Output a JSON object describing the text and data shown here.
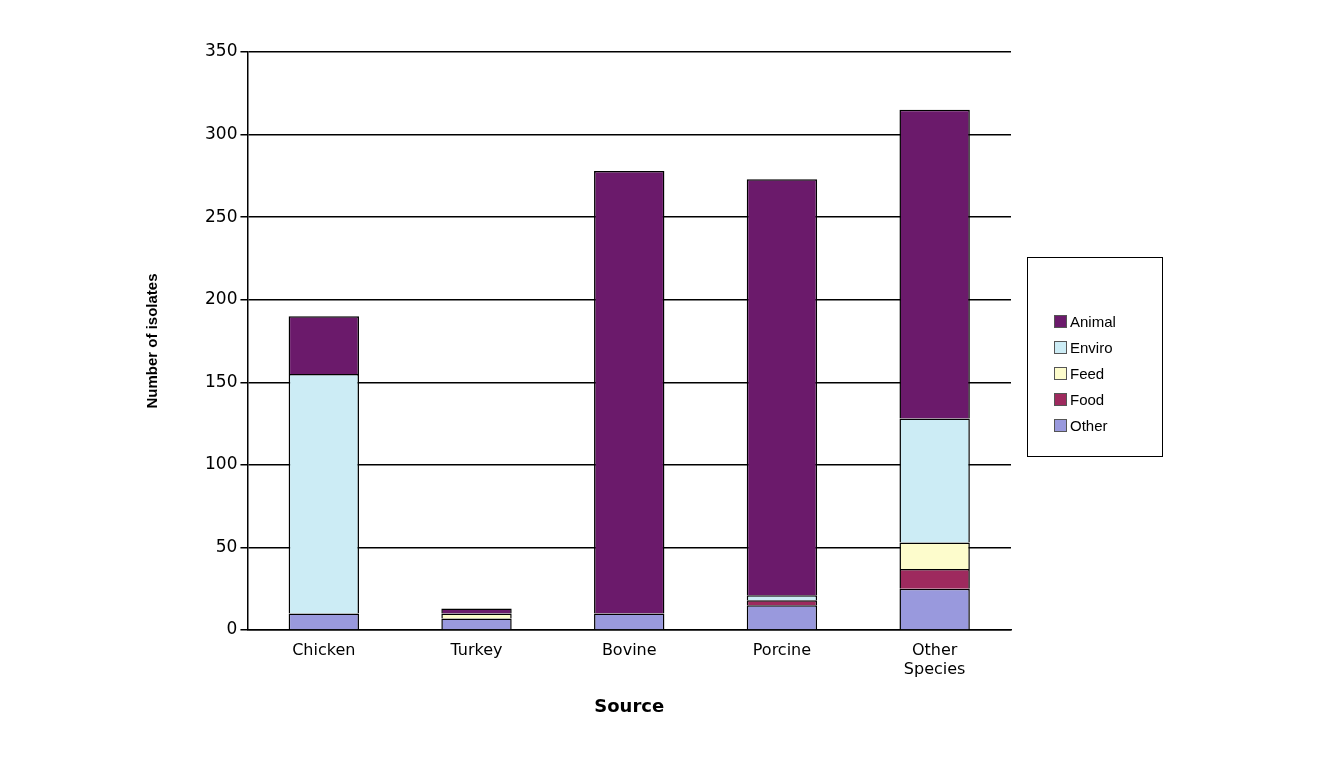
{
  "chart_data": {
    "type": "bar",
    "stacked": true,
    "xlabel": "Source",
    "ylabel": "Number of isolates",
    "categories": [
      "Chicken",
      "Turkey",
      "Bovine",
      "Porcine",
      "Other Species"
    ],
    "series": [
      {
        "name": "Other",
        "color": "#9999dd",
        "values": [
          10,
          7,
          10,
          15,
          25
        ]
      },
      {
        "name": "Food",
        "color": "#9e2a5e",
        "values": [
          0,
          0,
          0,
          3,
          12
        ]
      },
      {
        "name": "Feed",
        "color": "#fdfccc",
        "values": [
          0,
          3,
          0,
          0,
          16
        ]
      },
      {
        "name": "Enviro",
        "color": "#ccecf5",
        "values": [
          145,
          0,
          0,
          3,
          75
        ]
      },
      {
        "name": "Animal",
        "color": "#6b1a6b",
        "values": [
          35,
          3,
          268,
          252,
          187
        ]
      }
    ],
    "ylim": [
      0,
      350
    ],
    "yticks": [
      0,
      50,
      100,
      150,
      200,
      250,
      300,
      350
    ],
    "grid": "y",
    "legend": "right"
  }
}
